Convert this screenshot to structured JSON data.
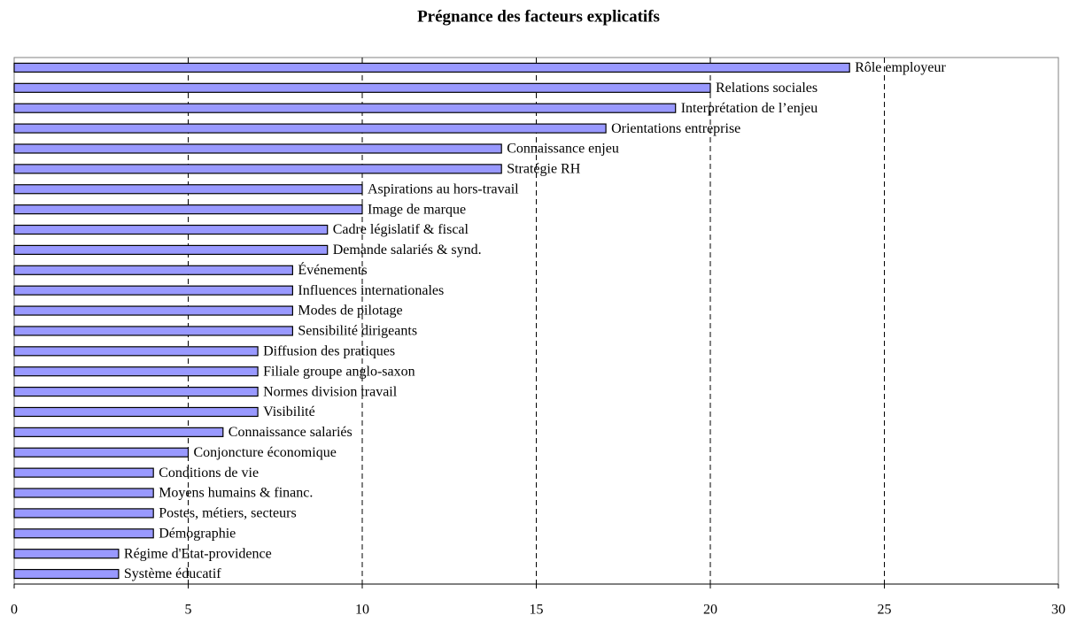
{
  "chart_data": {
    "type": "barh",
    "title": "Prégnance des facteurs explicatifs",
    "categories": [
      "Rôle employeur",
      "Relations sociales",
      "Interprétation de l’enjeu",
      "Orientations entreprise",
      "Connaissance enjeu",
      "Stratégie RH",
      "Aspirations au hors-travail",
      "Image de marque",
      "Cadre législatif & fiscal",
      "Demande salariés & synd.",
      "Événements",
      "Influences internationales",
      "Modes de pilotage",
      "Sensibilité dirigeants",
      "Diffusion des pratiques",
      "Filiale groupe anglo-saxon",
      "Normes division travail",
      "Visibilité",
      "Connaissance salariés",
      "Conjoncture économique",
      "Conditions de vie",
      "Moyens humains & financ.",
      "Postes, métiers, secteurs",
      "Démographie",
      "Régime d'Etat-providence",
      "Système éducatif"
    ],
    "values": [
      24,
      20,
      19,
      17,
      14,
      14,
      10,
      10,
      9,
      9,
      8,
      8,
      8,
      8,
      7,
      7,
      7,
      7,
      6,
      5,
      4,
      4,
      4,
      4,
      3,
      3
    ],
    "color": "#9999ff",
    "xlim": [
      0,
      30
    ],
    "xticks": [
      0,
      5,
      10,
      15,
      20,
      25,
      30
    ],
    "grid": true
  }
}
